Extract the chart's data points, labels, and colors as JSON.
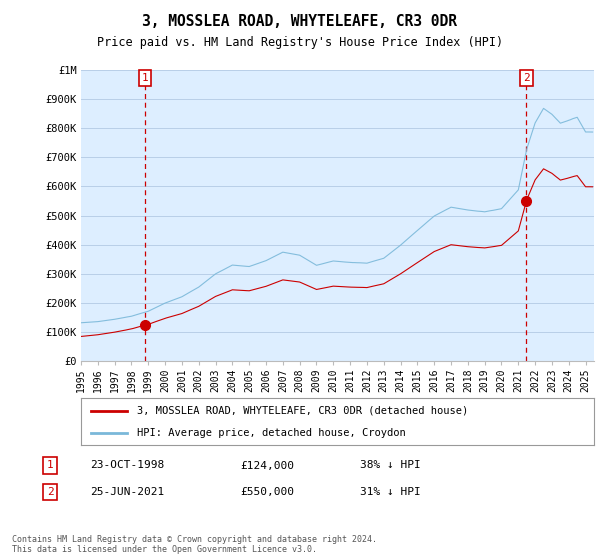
{
  "title": "3, MOSSLEA ROAD, WHYTELEAFE, CR3 0DR",
  "subtitle": "Price paid vs. HM Land Registry's House Price Index (HPI)",
  "legend_line1": "3, MOSSLEA ROAD, WHYTELEAFE, CR3 0DR (detached house)",
  "legend_line2": "HPI: Average price, detached house, Croydon",
  "annotation1_date": "23-OCT-1998",
  "annotation1_price": "£124,000",
  "annotation1_hpi": "38% ↓ HPI",
  "annotation2_date": "25-JUN-2021",
  "annotation2_price": "£550,000",
  "annotation2_hpi": "31% ↓ HPI",
  "footer": "Contains HM Land Registry data © Crown copyright and database right 2024.\nThis data is licensed under the Open Government Licence v3.0.",
  "sale1_year": 1998.81,
  "sale1_price": 124000,
  "sale2_year": 2021.48,
  "sale2_price": 550000,
  "hpi_color": "#7ab8d9",
  "price_color": "#cc0000",
  "sale_dot_color": "#cc0000",
  "vline_color": "#cc0000",
  "chart_bg": "#ddeeff",
  "background_color": "#ffffff",
  "grid_color": "#b8cfe8",
  "ylim": [
    0,
    1000000
  ],
  "xlim_start": 1995.0,
  "xlim_end": 2025.5,
  "yticks": [
    0,
    100000,
    200000,
    300000,
    400000,
    500000,
    600000,
    700000,
    800000,
    900000,
    1000000
  ],
  "ytick_labels": [
    "£0",
    "£100K",
    "£200K",
    "£300K",
    "£400K",
    "£500K",
    "£600K",
    "£700K",
    "£800K",
    "£900K",
    "£1M"
  ]
}
